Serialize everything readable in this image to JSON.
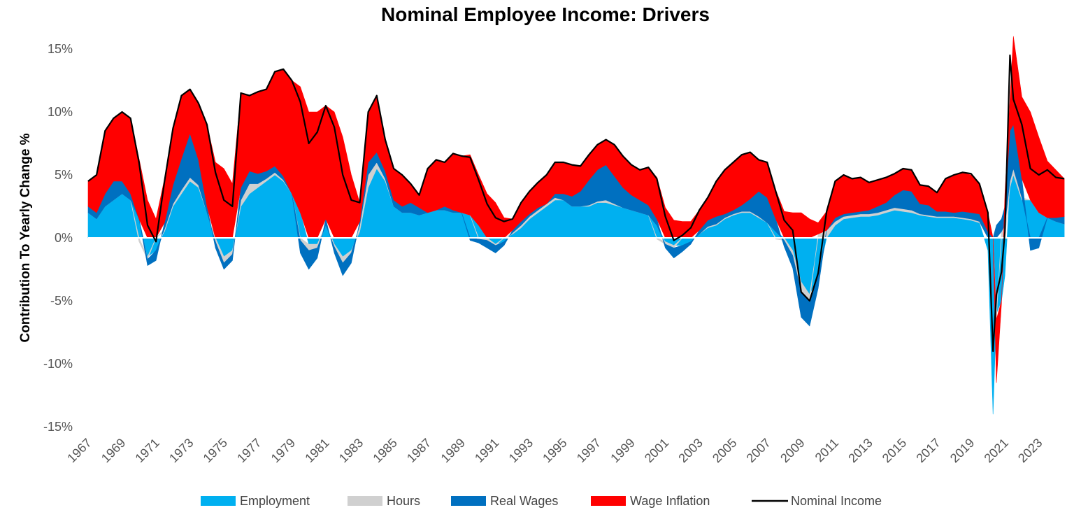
{
  "chart_data": {
    "type": "area",
    "title": "Nominal Employee Income: Drivers",
    "xlabel": "",
    "ylabel": "Contribution To Yearly Change %",
    "ylim": [
      -15,
      15
    ],
    "xlim": [
      1967,
      2024.7
    ],
    "y_ticks": [
      15,
      10,
      5,
      0,
      -5,
      -10,
      -15
    ],
    "y_tick_labels": [
      "15%",
      "10%",
      "5%",
      "0%",
      "-5%",
      "-10%",
      "-15%"
    ],
    "x_tick_labels": [
      "1967",
      "1969",
      "1971",
      "1973",
      "1975",
      "1977",
      "1979",
      "1981",
      "1983",
      "1985",
      "1987",
      "1989",
      "1991",
      "1993",
      "1995",
      "1997",
      "1999",
      "2001",
      "2003",
      "2005",
      "2007",
      "2009",
      "2011",
      "2013",
      "2015",
      "2017",
      "2019",
      "2021",
      "2023"
    ],
    "grid": false,
    "legend_position": "bottom",
    "stacked": true,
    "x": [
      1967.0,
      1967.5,
      1968.0,
      1968.5,
      1969.0,
      1969.5,
      1970.0,
      1970.5,
      1971.0,
      1971.5,
      1972.0,
      1972.5,
      1973.0,
      1973.5,
      1974.0,
      1974.5,
      1975.0,
      1975.5,
      1976.0,
      1976.5,
      1977.0,
      1977.5,
      1978.0,
      1978.5,
      1979.0,
      1979.5,
      1980.0,
      1980.5,
      1981.0,
      1981.5,
      1982.0,
      1982.5,
      1983.0,
      1983.5,
      1984.0,
      1984.5,
      1985.0,
      1985.5,
      1986.0,
      1986.5,
      1987.0,
      1987.5,
      1988.0,
      1988.5,
      1989.0,
      1989.5,
      1990.0,
      1990.5,
      1991.0,
      1991.5,
      1992.0,
      1992.5,
      1993.0,
      1993.5,
      1994.0,
      1994.5,
      1995.0,
      1995.5,
      1996.0,
      1996.5,
      1997.0,
      1997.5,
      1998.0,
      1998.5,
      1999.0,
      1999.5,
      2000.0,
      2000.5,
      2001.0,
      2001.5,
      2002.0,
      2002.5,
      2003.0,
      2003.5,
      2004.0,
      2004.5,
      2005.0,
      2005.5,
      2006.0,
      2006.5,
      2007.0,
      2007.5,
      2008.0,
      2008.5,
      2009.0,
      2009.5,
      2010.0,
      2010.5,
      2011.0,
      2011.5,
      2012.0,
      2012.5,
      2013.0,
      2013.5,
      2014.0,
      2014.5,
      2015.0,
      2015.5,
      2016.0,
      2016.5,
      2017.0,
      2017.5,
      2018.0,
      2018.5,
      2019.0,
      2019.5,
      2020.0,
      2020.3,
      2020.5,
      2020.8,
      2021.0,
      2021.3,
      2021.5,
      2022.0,
      2022.5,
      2023.0,
      2023.5,
      2024.0,
      2024.5
    ],
    "series": [
      {
        "name": "Employment",
        "color": "#00b0f0",
        "values": [
          2.0,
          1.5,
          2.5,
          3.0,
          3.5,
          3.0,
          1.5,
          -1.5,
          -1.0,
          0.5,
          2.5,
          3.5,
          4.5,
          4.0,
          2.0,
          0.0,
          -1.5,
          -1.0,
          2.5,
          3.5,
          4.0,
          4.5,
          5.0,
          4.5,
          3.5,
          2.0,
          -0.5,
          -0.5,
          1.0,
          -0.5,
          -1.5,
          -1.0,
          0.5,
          4.0,
          5.5,
          4.5,
          2.5,
          2.0,
          2.0,
          1.8,
          2.0,
          2.2,
          2.2,
          2.0,
          2.0,
          1.8,
          1.0,
          0.0,
          -0.5,
          -0.3,
          0.3,
          0.8,
          1.5,
          2.0,
          2.5,
          3.0,
          3.0,
          2.5,
          2.5,
          2.5,
          2.8,
          2.8,
          2.6,
          2.4,
          2.2,
          2.0,
          1.8,
          1.0,
          -0.3,
          -0.6,
          -0.6,
          -0.3,
          0.3,
          0.8,
          1.0,
          1.5,
          1.8,
          2.0,
          2.0,
          1.6,
          1.2,
          0.5,
          0.0,
          -1.0,
          -3.5,
          -4.5,
          -3.0,
          0.0,
          1.0,
          1.5,
          1.6,
          1.7,
          1.7,
          1.8,
          2.0,
          2.2,
          2.1,
          2.0,
          1.8,
          1.7,
          1.6,
          1.6,
          1.6,
          1.5,
          1.4,
          1.2,
          -1.0,
          -14.0,
          -6.0,
          -5.0,
          -3.0,
          4.0,
          5.0,
          3.0,
          3.0,
          2.0,
          1.6,
          1.3,
          1.1
        ]
      },
      {
        "name": "Hours",
        "color": "#d0d0d0",
        "values": [
          0.0,
          0.0,
          0.0,
          0.0,
          0.0,
          0.0,
          -0.3,
          -0.2,
          0.0,
          0.2,
          0.2,
          0.3,
          0.3,
          0.2,
          0.0,
          -0.3,
          -0.5,
          -0.3,
          0.5,
          0.8,
          0.3,
          0.2,
          0.2,
          0.1,
          0.0,
          -0.2,
          -0.5,
          -0.3,
          0.0,
          -0.2,
          -0.5,
          -0.2,
          0.5,
          1.0,
          0.5,
          0.2,
          0.0,
          0.0,
          0.0,
          0.0,
          0.0,
          0.0,
          0.0,
          0.0,
          0.0,
          0.0,
          -0.1,
          -0.2,
          -0.1,
          0.0,
          0.1,
          0.2,
          0.2,
          0.2,
          0.2,
          0.2,
          0.0,
          0.0,
          0.0,
          0.1,
          0.1,
          0.2,
          0.1,
          0.0,
          0.0,
          0.0,
          0.0,
          -0.1,
          -0.2,
          -0.2,
          0.0,
          0.0,
          0.0,
          0.1,
          0.1,
          0.1,
          0.1,
          0.1,
          0.1,
          0.1,
          0.0,
          -0.1,
          -0.2,
          -0.4,
          -0.8,
          -0.5,
          0.3,
          0.6,
          0.3,
          0.2,
          0.2,
          0.2,
          0.2,
          0.2,
          0.2,
          0.2,
          0.2,
          0.2,
          0.1,
          0.1,
          0.1,
          0.1,
          0.1,
          0.1,
          0.1,
          0.1,
          0.0,
          0.0,
          -0.5,
          0.5,
          1.0,
          0.5,
          0.5,
          0.2,
          0.0,
          0.0,
          0.0,
          0.0,
          0.0
        ]
      },
      {
        "name": "Real Wages",
        "color": "#0070c0",
        "values": [
          0.5,
          0.5,
          1.0,
          1.5,
          1.0,
          0.5,
          0.0,
          -0.5,
          -0.8,
          0.5,
          1.5,
          2.5,
          3.5,
          2.0,
          0.5,
          -0.5,
          -0.5,
          -0.5,
          1.0,
          1.0,
          0.8,
          0.6,
          0.5,
          0.3,
          0.0,
          -1.0,
          -1.5,
          -0.8,
          0.5,
          -0.5,
          -1.0,
          -0.8,
          0.3,
          1.0,
          0.8,
          0.6,
          0.5,
          0.5,
          0.8,
          0.6,
          0.0,
          0.0,
          0.3,
          0.2,
          0.0,
          -0.2,
          -0.3,
          -0.6,
          -0.6,
          -0.3,
          0.2,
          0.3,
          0.2,
          0.2,
          0.0,
          0.3,
          0.5,
          0.8,
          1.2,
          2.0,
          2.5,
          2.8,
          2.2,
          1.6,
          1.2,
          1.0,
          0.8,
          0.5,
          -0.3,
          -0.8,
          -0.5,
          -0.2,
          0.3,
          0.5,
          0.6,
          0.3,
          0.3,
          0.5,
          1.0,
          2.0,
          2.0,
          1.0,
          -0.5,
          -1.0,
          -2.0,
          -2.0,
          -1.0,
          0.0,
          0.3,
          0.2,
          0.2,
          0.2,
          0.3,
          0.5,
          0.6,
          1.0,
          1.5,
          1.5,
          0.8,
          0.8,
          0.4,
          0.4,
          0.3,
          0.5,
          0.5,
          0.6,
          0.5,
          0.0,
          1.0,
          1.0,
          1.5,
          4.0,
          3.5,
          1.5,
          -1.0,
          -0.8,
          0.0,
          0.3,
          0.6
        ]
      },
      {
        "name": "Wage Inflation",
        "color": "#ff0000",
        "values": [
          2.0,
          3.0,
          5.0,
          5.0,
          5.5,
          6.0,
          4.8,
          3.0,
          1.5,
          3.5,
          4.5,
          5.0,
          3.5,
          4.5,
          6.5,
          6.0,
          5.5,
          4.3,
          7.5,
          6.0,
          6.5,
          6.5,
          7.5,
          8.5,
          9.0,
          10.0,
          10.0,
          10.0,
          9.0,
          10.0,
          8.0,
          5.0,
          1.5,
          4.0,
          4.5,
          2.5,
          2.5,
          2.5,
          1.5,
          1.0,
          3.5,
          4.0,
          3.5,
          4.5,
          4.5,
          4.8,
          4.0,
          3.5,
          2.8,
          1.6,
          0.9,
          1.5,
          1.8,
          2.0,
          2.3,
          2.5,
          2.5,
          2.5,
          2.0,
          2.0,
          2.0,
          2.0,
          2.5,
          2.5,
          2.4,
          2.4,
          3.0,
          3.3,
          2.4,
          1.4,
          1.3,
          1.3,
          1.6,
          1.8,
          2.8,
          3.5,
          3.8,
          4.0,
          3.7,
          2.5,
          2.8,
          2.3,
          2.1,
          2.0,
          2.0,
          1.5,
          0.9,
          1.5,
          2.9,
          3.1,
          2.7,
          2.7,
          2.2,
          2.1,
          2.0,
          1.7,
          1.7,
          1.7,
          1.5,
          1.5,
          1.5,
          2.6,
          3.0,
          3.1,
          3.0,
          2.4,
          1.5,
          0.0,
          -5.0,
          -0.2,
          1.0,
          2.5,
          7.0,
          6.5,
          7.0,
          6.0,
          4.5,
          3.8,
          3.0
        ]
      }
    ],
    "line_series": {
      "name": "Nominal Income",
      "color": "#000000",
      "values": [
        4.5,
        5.0,
        8.5,
        9.5,
        10.0,
        9.5,
        6.0,
        1.0,
        -0.3,
        4.5,
        8.7,
        11.3,
        11.8,
        10.7,
        9.0,
        5.2,
        3.0,
        2.5,
        11.5,
        11.3,
        11.6,
        11.8,
        13.2,
        13.4,
        12.5,
        10.8,
        7.5,
        8.4,
        10.5,
        8.8,
        5.0,
        3.0,
        2.8,
        10.0,
        11.3,
        7.8,
        5.5,
        5.0,
        4.3,
        3.4,
        5.5,
        6.2,
        6.0,
        6.7,
        6.5,
        6.4,
        4.6,
        2.7,
        1.6,
        1.3,
        1.5,
        2.8,
        3.7,
        4.4,
        5.0,
        6.0,
        6.0,
        5.8,
        5.7,
        6.6,
        7.4,
        7.8,
        7.4,
        6.5,
        5.8,
        5.4,
        5.6,
        4.7,
        1.7,
        -0.2,
        0.2,
        0.8,
        2.2,
        3.2,
        4.5,
        5.4,
        6.0,
        6.6,
        6.8,
        6.2,
        6.0,
        3.7,
        1.4,
        0.6,
        -4.3,
        -5.0,
        -2.8,
        2.1,
        4.5,
        5.0,
        4.7,
        4.8,
        4.4,
        4.6,
        4.8,
        5.1,
        5.5,
        5.4,
        4.2,
        4.1,
        3.6,
        4.7,
        5.0,
        5.2,
        5.1,
        4.3,
        2.0,
        -9.0,
        -4.5,
        -2.7,
        0.5,
        14.5,
        11.0,
        9.0,
        5.5,
        5.0,
        5.4,
        4.8,
        4.7
      ]
    }
  }
}
